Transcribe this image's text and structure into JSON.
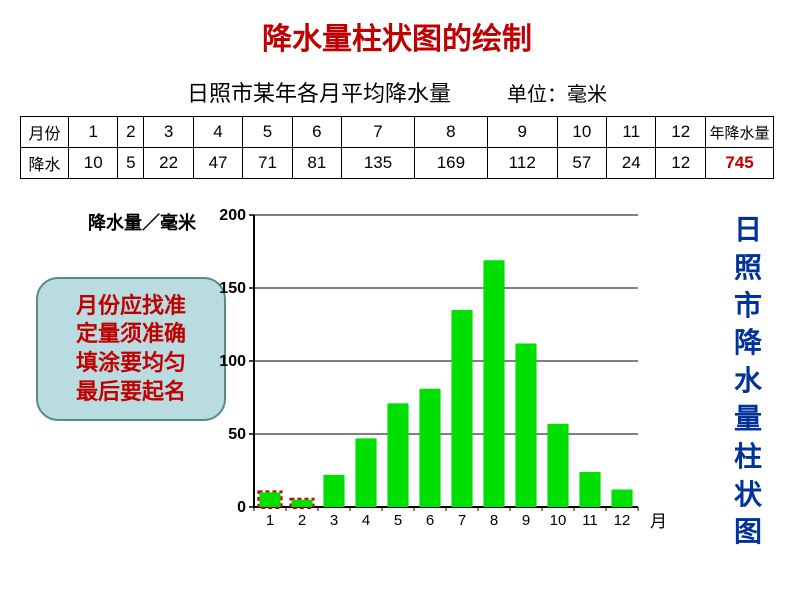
{
  "title": "降水量柱状图的绘制",
  "subtitle": "日照市某年各月平均降水量",
  "unit_label": "单位：毫米",
  "table": {
    "row_headers": [
      "月份",
      "降水"
    ],
    "months": [
      "1",
      "2",
      "3",
      "4",
      "5",
      "6",
      "7",
      "8",
      "9",
      "10",
      "11",
      "12"
    ],
    "values": [
      10,
      5,
      22,
      47,
      71,
      81,
      135,
      169,
      112,
      57,
      24,
      12
    ],
    "total_header": "年降水量",
    "total_value": "745",
    "total_color": "#c00000"
  },
  "tips": [
    "月份应找准",
    "定量须准确",
    "填涂要均匀",
    "最后要起名"
  ],
  "tip_box": {
    "bg": "#b8dce0",
    "border": "#5a8a8a",
    "text_color": "#c00000"
  },
  "vertical_title": "日照市降水量柱状图",
  "vertical_color": "#003399",
  "chart": {
    "type": "bar",
    "categories": [
      "1",
      "2",
      "3",
      "4",
      "5",
      "6",
      "7",
      "8",
      "9",
      "10",
      "11",
      "12"
    ],
    "values": [
      10,
      5,
      22,
      47,
      71,
      81,
      135,
      169,
      112,
      57,
      24,
      12
    ],
    "bar_color": "#00e000",
    "highlight_indices": [
      0,
      1
    ],
    "highlight_style": {
      "fill": "#ffc0c0",
      "stroke": "#c00000",
      "dash": "4,3"
    },
    "ylabel": "降水量／毫米",
    "xlabel": "月",
    "ylim": [
      0,
      200
    ],
    "yticks": [
      0,
      50,
      100,
      150,
      200
    ],
    "gridline_color": "#000000",
    "axis_color": "#000000",
    "background": "#ffffff",
    "bar_width_ratio": 0.66,
    "label_fontsize": 16
  }
}
